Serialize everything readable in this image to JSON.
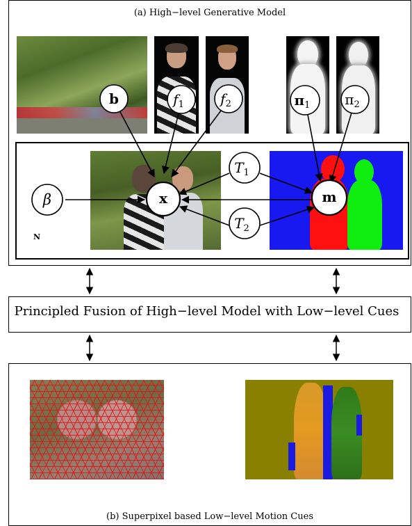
{
  "top_panel": {
    "caption": "(a) High−level Generative Model",
    "plate_label": "N"
  },
  "nodes": {
    "b": "b",
    "f1": "f",
    "f1_sub": "1",
    "f2": "f",
    "f2_sub": "2",
    "pi1": "π",
    "pi1_sub": "1",
    "pi2": "π",
    "pi2_sub": "2",
    "beta": "β",
    "x": "x",
    "t1": "T",
    "t1_sub": "1",
    "t2": "T",
    "t2_sub": "2",
    "m": "m"
  },
  "middle_panel": {
    "text": "Principled Fusion of High−level Model with Low−level Cues"
  },
  "bottom_panel": {
    "caption": "(b) Superpixel based Low−level Motion Cues"
  }
}
